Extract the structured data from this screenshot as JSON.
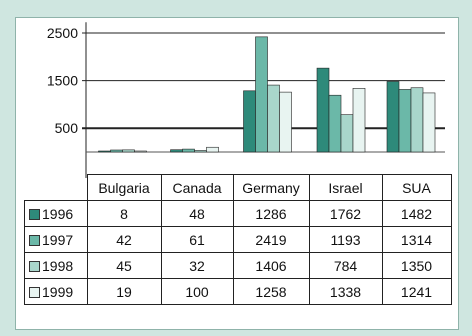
{
  "chart_data": {
    "type": "bar",
    "categories": [
      "Bulgaria",
      "Canada",
      "Germany",
      "Israel",
      "SUA"
    ],
    "series": [
      {
        "name": "1996",
        "values": [
          8,
          48,
          1286,
          1762,
          1482
        ],
        "color": "#2e8a7a"
      },
      {
        "name": "1997",
        "values": [
          42,
          61,
          2419,
          1193,
          1314
        ],
        "color": "#6bb8a8"
      },
      {
        "name": "1998",
        "values": [
          45,
          32,
          1406,
          784,
          1350
        ],
        "color": "#a9d6cb"
      },
      {
        "name": "1999",
        "values": [
          19,
          100,
          1258,
          1338,
          1241
        ],
        "color": "#e8f4f1"
      }
    ],
    "yticks": [
      500,
      1500,
      2500
    ],
    "ylim": [
      0,
      2600
    ],
    "legend": "left, in data table"
  }
}
